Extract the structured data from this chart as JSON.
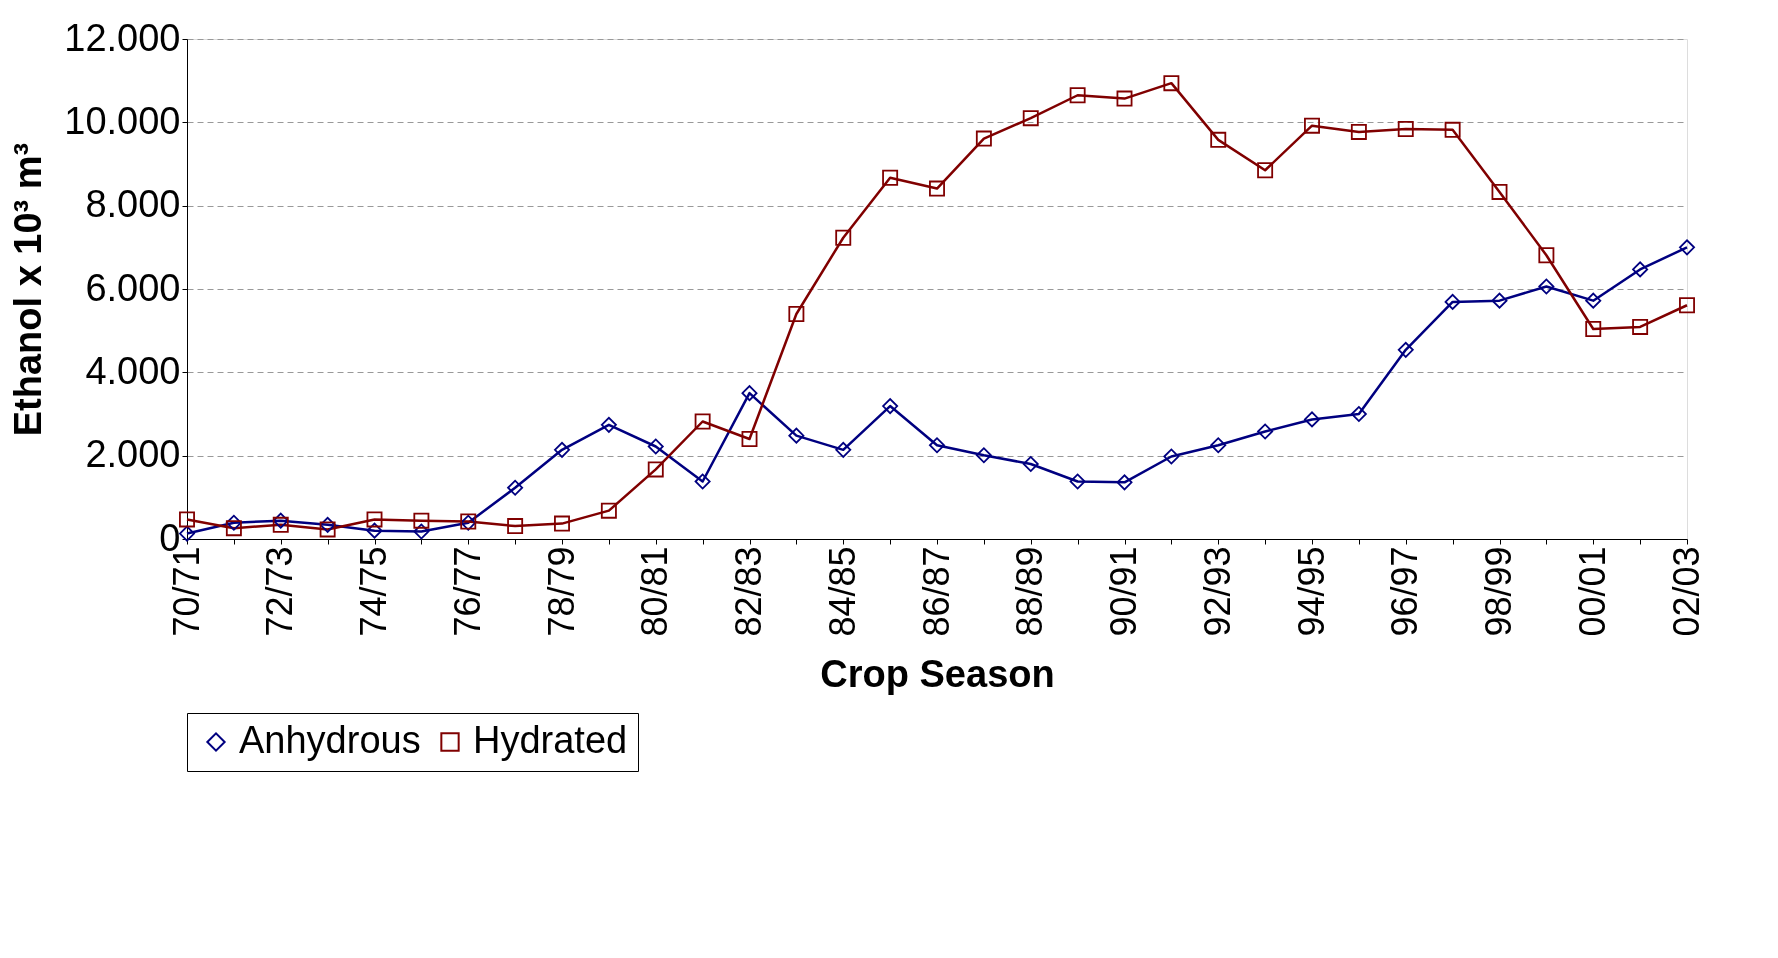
{
  "chart_data": {
    "type": "line",
    "xlabel": "Crop Season",
    "ylabel": "Ethanol x 10³ m³",
    "categories": [
      "70/71",
      null,
      "72/73",
      null,
      "74/75",
      null,
      "76/77",
      null,
      "78/79",
      null,
      "80/81",
      null,
      "82/83",
      null,
      "84/85",
      null,
      "86/87",
      null,
      "88/89",
      null,
      "90/91",
      null,
      "92/93",
      null,
      "94/95",
      null,
      "96/97",
      null,
      "98/99",
      null,
      "00/01",
      null,
      "02/03"
    ],
    "series": [
      {
        "name": "Anhydrous",
        "color": "#000080",
        "marker": "diamond",
        "values": [
          130,
          390,
          440,
          340,
          200,
          180,
          390,
          1230,
          2140,
          2740,
          2220,
          1380,
          3500,
          2480,
          2140,
          3190,
          2250,
          2010,
          1800,
          1380,
          1360,
          1980,
          2250,
          2580,
          2870,
          3000,
          4540,
          5690,
          5720,
          6060,
          5720,
          6470,
          7000
        ]
      },
      {
        "name": "Hydrated",
        "color": "#800000",
        "marker": "square",
        "values": [
          470,
          260,
          340,
          230,
          470,
          440,
          420,
          310,
          370,
          680,
          1670,
          2820,
          2400,
          5400,
          7230,
          8670,
          8410,
          9610,
          10100,
          10650,
          10570,
          10940,
          9580,
          8850,
          9920,
          9770,
          9840,
          9820,
          8330,
          6810,
          5040,
          5090,
          5610
        ]
      }
    ],
    "ylim": [
      0,
      12000
    ],
    "yticks": [
      0,
      {
        "value": 2000,
        "label": "2.000"
      },
      {
        "value": 4000,
        "label": "4.000"
      },
      {
        "value": 6000,
        "label": "6.000"
      },
      {
        "value": 8000,
        "label": "8.000"
      },
      {
        "value": 10000,
        "label": "10.000"
      },
      {
        "value": 12000,
        "label": "12.000"
      }
    ],
    "grid": "y",
    "legend": "bottom",
    "line_style": "solid"
  }
}
